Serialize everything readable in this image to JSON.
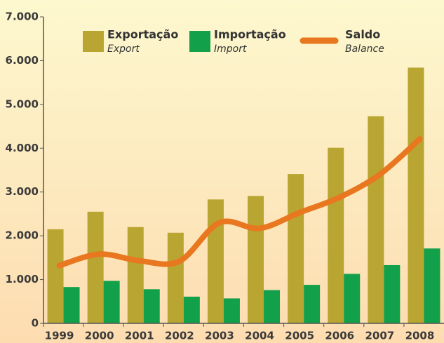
{
  "chart_data": {
    "type": "bar_line",
    "categories": [
      "1999",
      "2000",
      "2001",
      "2002",
      "2003",
      "2004",
      "2005",
      "2006",
      "2007",
      "2008"
    ],
    "series": [
      {
        "name": "Exportação",
        "name_en": "Export",
        "color": "#b8a532",
        "kind": "bar",
        "values": [
          2150,
          2550,
          2200,
          2070,
          2830,
          2910,
          3410,
          4010,
          4730,
          5840
        ]
      },
      {
        "name": "Importação",
        "name_en": "Import",
        "color": "#12a04a",
        "kind": "bar",
        "values": [
          830,
          970,
          780,
          610,
          570,
          760,
          880,
          1130,
          1330,
          1710
        ]
      },
      {
        "name": "Saldo",
        "name_en": "Balance",
        "color": "#e8771f",
        "kind": "line",
        "values": [
          1320,
          1580,
          1430,
          1420,
          2300,
          2170,
          2530,
          2880,
          3400,
          4210
        ]
      }
    ],
    "ylim": [
      0,
      7000
    ],
    "yticks": [
      0,
      {
        "value": 1000,
        "label": "1.000"
      },
      {
        "value": 2000,
        "label": "2.000"
      },
      {
        "value": 3000,
        "label": "3.000"
      },
      {
        "value": 4000,
        "label": "4.000"
      },
      {
        "value": 5000,
        "label": "5.000"
      },
      {
        "value": 6000,
        "label": "6.000"
      },
      {
        "value": 7000,
        "label": "7.000"
      }
    ],
    "grid": false
  }
}
